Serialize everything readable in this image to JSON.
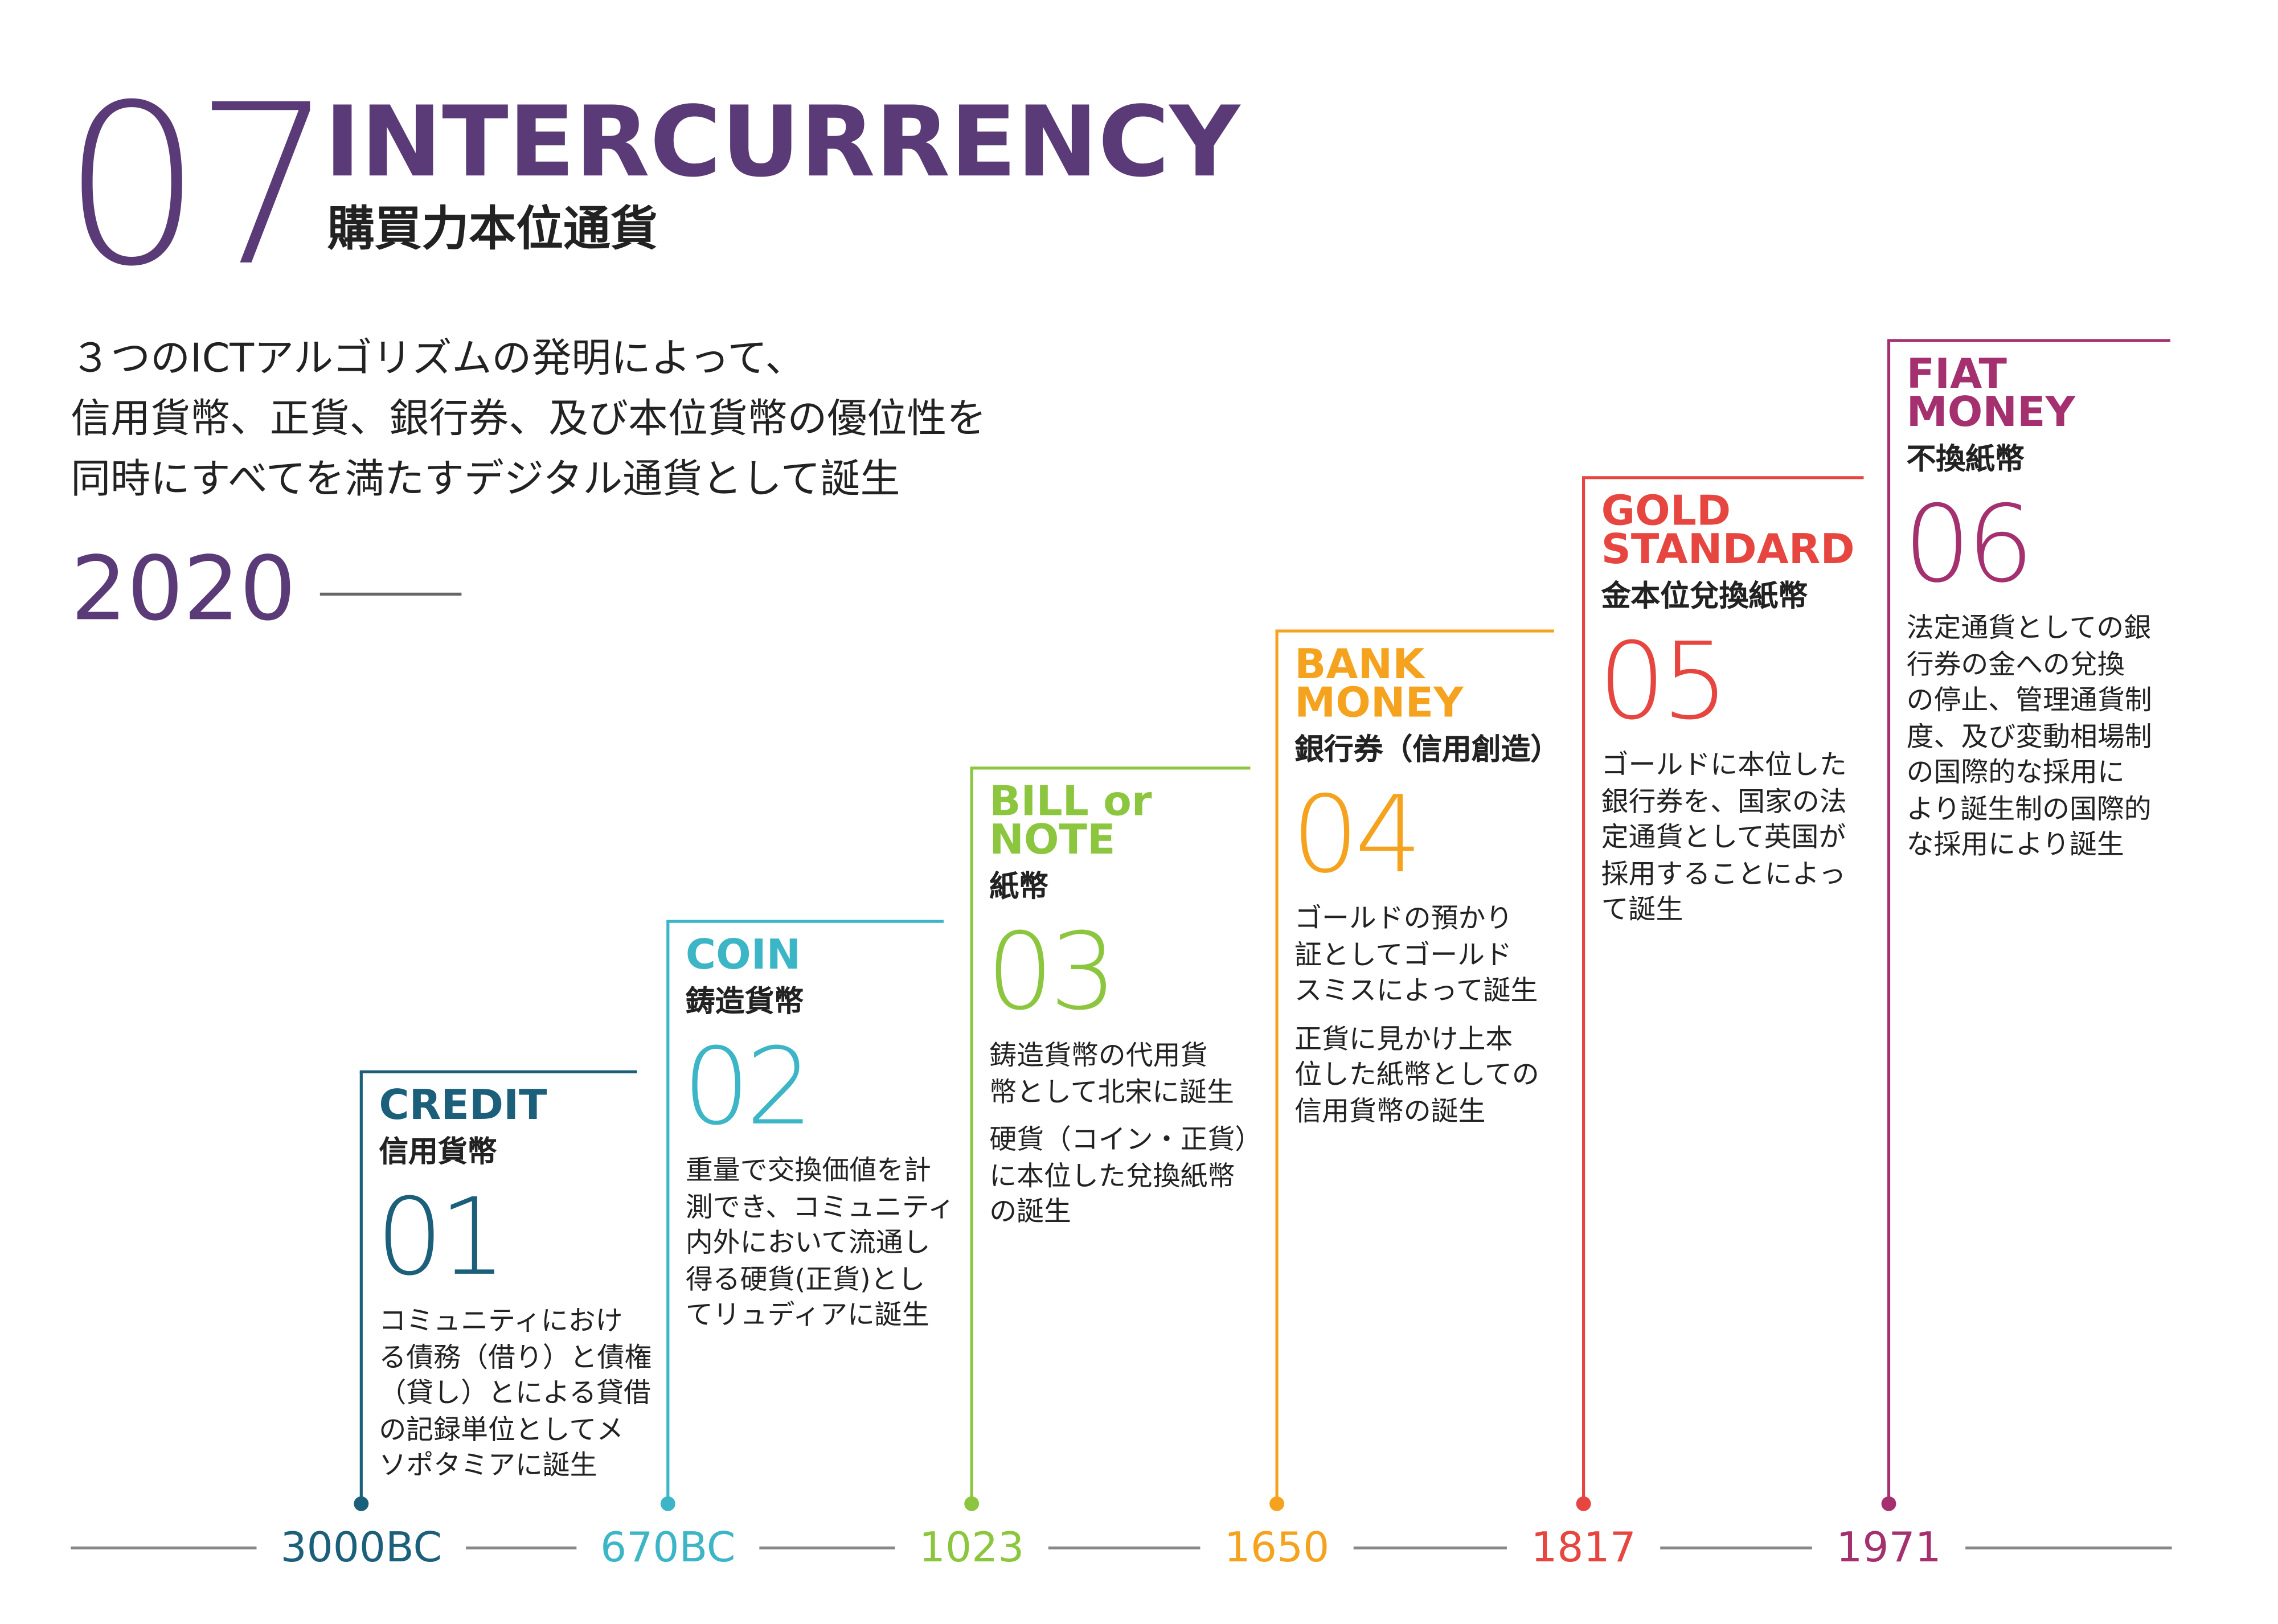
{
  "header": {
    "number": "07",
    "title": "INTERCURRENCY",
    "subtitle": "購買力本位通貨"
  },
  "intro": [
    "３つのICTアルゴリズムの発明によって、",
    "信用貨幣、正貨、銀行券、及び本位貨幣の優位性を",
    "同時にすべてを満たすデジタル通貨として誕生"
  ],
  "year": "2020",
  "steps": [
    {
      "title": [
        "CREDIT"
      ],
      "subtitle": "信用貨幣",
      "number": "01",
      "paragraphs": [
        [
          "コミュニティにおけ",
          "る債務（借り）と債権",
          "（貸し）とによる貸借",
          "の記録単位としてメ",
          "ソポタミアに誕生"
        ]
      ],
      "date": "3000BC"
    },
    {
      "title": [
        "COIN"
      ],
      "subtitle": "鋳造貨幣",
      "number": "02",
      "paragraphs": [
        [
          "重量で交換価値を計",
          "測でき、コミュニティ",
          "内外において流通し",
          "得る硬貨(正貨)とし",
          "てリュディアに誕生"
        ]
      ],
      "date": "670BC"
    },
    {
      "title": [
        "BILL or",
        "NOTE"
      ],
      "subtitle": "紙幣",
      "number": "03",
      "paragraphs": [
        [
          "鋳造貨幣の代用貨",
          "幣として北宋に誕生"
        ],
        [
          "硬貨（コイン・正貨）",
          "に本位した兌換紙幣",
          "の誕生"
        ]
      ],
      "date": "1023"
    },
    {
      "title": [
        "BANK",
        "MONEY"
      ],
      "subtitle": "銀行券（信用創造）",
      "number": "04",
      "paragraphs": [
        [
          "ゴールドの預かり",
          "証としてゴールド",
          "スミスによって誕生"
        ],
        [
          "正貨に見かけ上本",
          "位した紙幣としての",
          "信用貨幣の誕生"
        ]
      ],
      "date": "1650"
    },
    {
      "title": [
        "GOLD",
        "STANDARD"
      ],
      "subtitle": "金本位兌換紙幣",
      "number": "05",
      "paragraphs": [
        [
          "ゴールドに本位した",
          "銀行券を、国家の法",
          "定通貨として英国が",
          "採用することによっ",
          "て誕生"
        ]
      ],
      "date": "1817"
    },
    {
      "title": [
        "FIAT",
        "MONEY"
      ],
      "subtitle": "不換紙幣",
      "number": "06",
      "paragraphs": [
        [
          "法定通貨としての銀",
          "行券の金への兌換",
          "の停止、管理通貨制",
          "度、及び変動相場制",
          "の国際的な採用に",
          "より誕生制の国際的",
          "な採用により誕生"
        ]
      ],
      "date": "1971"
    }
  ]
}
